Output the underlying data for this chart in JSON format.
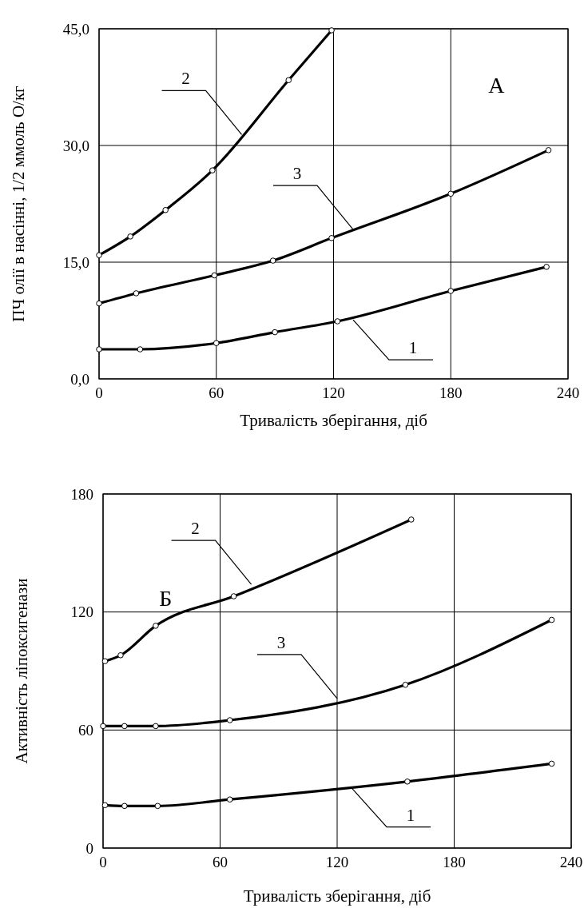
{
  "chart_data": [
    {
      "type": "line",
      "xlabel": "Тривалість зберігання, діб",
      "ylabel": "ПЧ олії в насінні, 1/2 ммоль О/кг",
      "xlim": [
        0,
        240
      ],
      "xticks": [
        0,
        60,
        120,
        180,
        240
      ],
      "ylim": [
        0,
        45
      ],
      "yticks": [
        {
          "value": 0,
          "label": "0,0"
        },
        {
          "value": 15,
          "label": "15,0"
        },
        {
          "value": 30,
          "label": "30,0"
        },
        {
          "value": 45,
          "label": "45,0"
        }
      ],
      "grid": true,
      "marker": "circle",
      "line_style": "solid",
      "series": [
        {
          "color": "#000000",
          "x": [
            0,
            21,
            60,
            90,
            122,
            180,
            229
          ],
          "values": [
            3.8,
            3.8,
            4.6,
            6.0,
            7.4,
            11.3,
            14.4
          ]
        },
        {
          "color": "#000000",
          "x": [
            0,
            16,
            34,
            58,
            97,
            119
          ],
          "values": [
            15.9,
            18.3,
            21.7,
            26.8,
            38.4,
            44.8
          ]
        },
        {
          "color": "#000000",
          "x": [
            0,
            19,
            59,
            89,
            119,
            180,
            230
          ],
          "values": [
            9.7,
            11.0,
            13.3,
            15.2,
            18.1,
            23.8,
            29.4
          ]
        }
      ],
      "annotations": [
        "А",
        {
          "text": "1",
          "x": 130,
          "y": 7.6
        },
        {
          "text": "2",
          "x": 73,
          "y": 31.4
        },
        {
          "text": "3",
          "x": 130,
          "y": 19.2
        }
      ]
    },
    {
      "type": "line",
      "xlabel": "Тривалість зберігання, діб",
      "ylabel": "Активність ліпоксигенази",
      "xlim": [
        0,
        240
      ],
      "xticks": [
        0,
        60,
        120,
        180,
        240
      ],
      "ylim": [
        0,
        180
      ],
      "yticks": [
        0,
        60,
        120,
        180
      ],
      "grid": true,
      "marker": "circle",
      "line_style": "solid",
      "series": [
        {
          "color": "#000000",
          "x": [
            1,
            11,
            28,
            65,
            156,
            230
          ],
          "values": [
            21.8,
            21.4,
            21.4,
            24.7,
            33.8,
            42.9
          ]
        },
        {
          "color": "#000000",
          "x": [
            1,
            9,
            27,
            67,
            158
          ],
          "values": [
            95,
            98,
            113,
            128,
            167
          ]
        },
        {
          "color": "#000000",
          "x": [
            0,
            11,
            27,
            65,
            155,
            230
          ],
          "values": [
            62,
            62,
            62,
            65,
            83,
            116
          ]
        }
      ],
      "annotations": [
        "Б",
        {
          "text": "1",
          "x": 127,
          "y": 31
        },
        {
          "text": "2",
          "x": 76,
          "y": 134
        },
        {
          "text": "3",
          "x": 120,
          "y": 76
        }
      ]
    }
  ]
}
